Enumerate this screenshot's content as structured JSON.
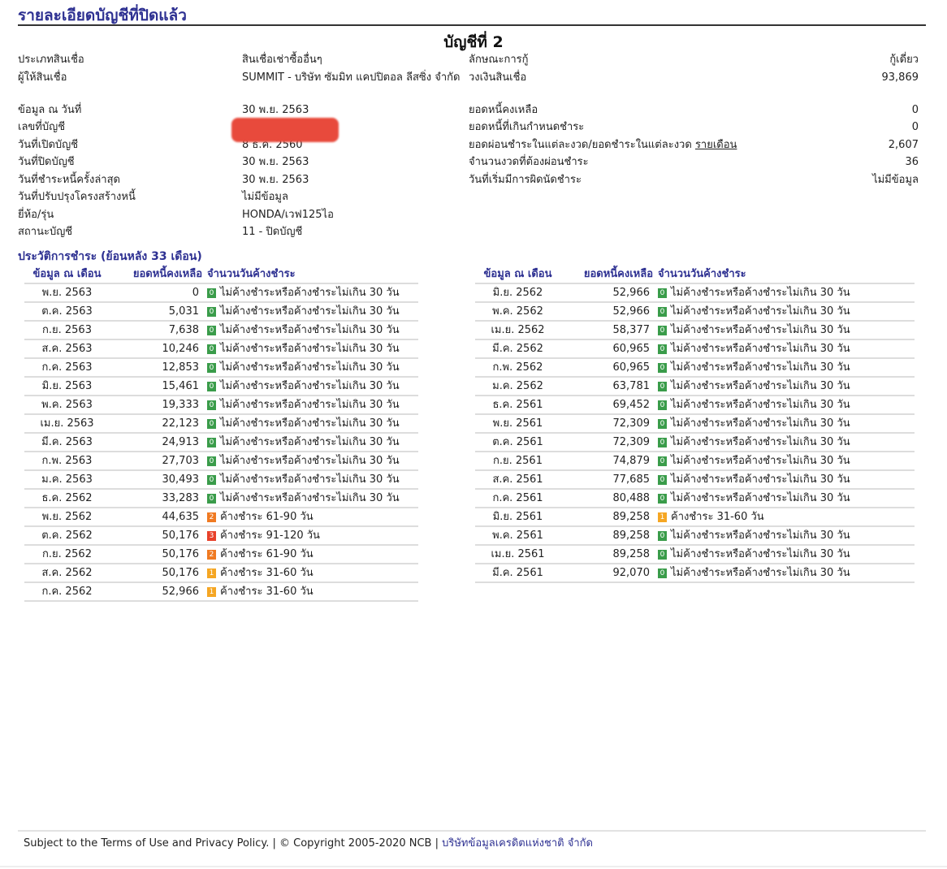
{
  "page_title": "รายละเอียดบัญชีที่ปิดแล้ว",
  "account_title": "บัญชีที่ 2",
  "details_left": [
    {
      "label": "ประเภทสินเชื่อ",
      "value": "สินเชื่อเช่าซื้ออื่นๆ"
    },
    {
      "label": "ผู้ให้สินเชื่อ",
      "value": "SUMMIT - บริษัท ซัมมิท แคปปิตอล ลีสซิ่ง จำกัด"
    },
    {
      "label": "ข้อมูล ณ วันที่",
      "value": "30 พ.ย. 2563"
    },
    {
      "label": "เลขที่บัญชี",
      "value": ""
    },
    {
      "label": "วันที่เปิดบัญชี",
      "value": "8 ธ.ค. 2560"
    },
    {
      "label": "วันที่ปิดบัญชี",
      "value": "30 พ.ย. 2563"
    },
    {
      "label": "วันที่ชำระหนี้ครั้งล่าสุด",
      "value": "30 พ.ย. 2563"
    },
    {
      "label": "วันที่ปรับปรุงโครงสร้างหนี้",
      "value": "ไม่มีข้อมูล"
    },
    {
      "label": "ยี่ห้อ/รุ่น",
      "value": "HONDA/เวฟ125ไอ"
    },
    {
      "label": "สถานะบัญชี",
      "value": "11 - ปิดบัญชี"
    }
  ],
  "details_right": [
    {
      "label": "ลักษณะการกู้",
      "value": "กู้เดี่ยว"
    },
    {
      "label": "วงเงินสินเชื่อ",
      "value": "93,869"
    },
    {
      "label": "ยอดหนี้คงเหลือ",
      "value": "0"
    },
    {
      "label": "ยอดหนี้ที่เกินกำหนดชำระ",
      "value": "0"
    },
    {
      "label": "ยอดผ่อนชำระในแต่ละงวด/ยอดชำระในแต่ละงวด",
      "link": "รายเดือน",
      "value": "2,607"
    },
    {
      "label": "จำนวนงวดที่ต้องผ่อนชำระ",
      "value": "36"
    },
    {
      "label": "วันที่เริ่มมีการผิดนัดชำระ",
      "value": "ไม่มีข้อมูล"
    }
  ],
  "history": {
    "title": "ประวัติการชำระ (ย้อนหลัง 33 เดือน)",
    "headers": {
      "month": "ข้อมูล ณ เดือน",
      "balance": "ยอดหนี้คงเหลือ",
      "days": "จำนวนวันค้างชำระ"
    },
    "badge_colors": {
      "0": "#3a9c4a",
      "1": "#f5a623",
      "2": "#f07a22",
      "3": "#e8412a"
    },
    "left": [
      {
        "month": "พ.ย. 2563",
        "balance": "0",
        "code": "0",
        "status": "ไม่ค้างชำระหรือค้างชำระไม่เกิน 30 วัน"
      },
      {
        "month": "ต.ค. 2563",
        "balance": "5,031",
        "code": "0",
        "status": "ไม่ค้างชำระหรือค้างชำระไม่เกิน 30 วัน"
      },
      {
        "month": "ก.ย. 2563",
        "balance": "7,638",
        "code": "0",
        "status": "ไม่ค้างชำระหรือค้างชำระไม่เกิน 30 วัน"
      },
      {
        "month": "ส.ค. 2563",
        "balance": "10,246",
        "code": "0",
        "status": "ไม่ค้างชำระหรือค้างชำระไม่เกิน 30 วัน"
      },
      {
        "month": "ก.ค. 2563",
        "balance": "12,853",
        "code": "0",
        "status": "ไม่ค้างชำระหรือค้างชำระไม่เกิน 30 วัน"
      },
      {
        "month": "มิ.ย. 2563",
        "balance": "15,461",
        "code": "0",
        "status": "ไม่ค้างชำระหรือค้างชำระไม่เกิน 30 วัน"
      },
      {
        "month": "พ.ค. 2563",
        "balance": "19,333",
        "code": "0",
        "status": "ไม่ค้างชำระหรือค้างชำระไม่เกิน 30 วัน"
      },
      {
        "month": "เม.ย. 2563",
        "balance": "22,123",
        "code": "0",
        "status": "ไม่ค้างชำระหรือค้างชำระไม่เกิน 30 วัน"
      },
      {
        "month": "มี.ค. 2563",
        "balance": "24,913",
        "code": "0",
        "status": "ไม่ค้างชำระหรือค้างชำระไม่เกิน 30 วัน"
      },
      {
        "month": "ก.พ. 2563",
        "balance": "27,703",
        "code": "0",
        "status": "ไม่ค้างชำระหรือค้างชำระไม่เกิน 30 วัน"
      },
      {
        "month": "ม.ค. 2563",
        "balance": "30,493",
        "code": "0",
        "status": "ไม่ค้างชำระหรือค้างชำระไม่เกิน 30 วัน"
      },
      {
        "month": "ธ.ค. 2562",
        "balance": "33,283",
        "code": "0",
        "status": "ไม่ค้างชำระหรือค้างชำระไม่เกิน 30 วัน"
      },
      {
        "month": "พ.ย. 2562",
        "balance": "44,635",
        "code": "2",
        "status": "ค้างชำระ 61-90 วัน"
      },
      {
        "month": "ต.ค. 2562",
        "balance": "50,176",
        "code": "3",
        "status": "ค้างชำระ 91-120 วัน"
      },
      {
        "month": "ก.ย. 2562",
        "balance": "50,176",
        "code": "2",
        "status": "ค้างชำระ 61-90 วัน"
      },
      {
        "month": "ส.ค. 2562",
        "balance": "50,176",
        "code": "1",
        "status": "ค้างชำระ 31-60 วัน"
      },
      {
        "month": "ก.ค. 2562",
        "balance": "52,966",
        "code": "1",
        "status": "ค้างชำระ 31-60 วัน"
      }
    ],
    "right": [
      {
        "month": "มิ.ย. 2562",
        "balance": "52,966",
        "code": "0",
        "status": "ไม่ค้างชำระหรือค้างชำระไม่เกิน 30 วัน"
      },
      {
        "month": "พ.ค. 2562",
        "balance": "52,966",
        "code": "0",
        "status": "ไม่ค้างชำระหรือค้างชำระไม่เกิน 30 วัน"
      },
      {
        "month": "เม.ย. 2562",
        "balance": "58,377",
        "code": "0",
        "status": "ไม่ค้างชำระหรือค้างชำระไม่เกิน 30 วัน"
      },
      {
        "month": "มี.ค. 2562",
        "balance": "60,965",
        "code": "0",
        "status": "ไม่ค้างชำระหรือค้างชำระไม่เกิน 30 วัน"
      },
      {
        "month": "ก.พ. 2562",
        "balance": "60,965",
        "code": "0",
        "status": "ไม่ค้างชำระหรือค้างชำระไม่เกิน 30 วัน"
      },
      {
        "month": "ม.ค. 2562",
        "balance": "63,781",
        "code": "0",
        "status": "ไม่ค้างชำระหรือค้างชำระไม่เกิน 30 วัน"
      },
      {
        "month": "ธ.ค. 2561",
        "balance": "69,452",
        "code": "0",
        "status": "ไม่ค้างชำระหรือค้างชำระไม่เกิน 30 วัน"
      },
      {
        "month": "พ.ย. 2561",
        "balance": "72,309",
        "code": "0",
        "status": "ไม่ค้างชำระหรือค้างชำระไม่เกิน 30 วัน"
      },
      {
        "month": "ต.ค. 2561",
        "balance": "72,309",
        "code": "0",
        "status": "ไม่ค้างชำระหรือค้างชำระไม่เกิน 30 วัน"
      },
      {
        "month": "ก.ย. 2561",
        "balance": "74,879",
        "code": "0",
        "status": "ไม่ค้างชำระหรือค้างชำระไม่เกิน 30 วัน"
      },
      {
        "month": "ส.ค. 2561",
        "balance": "77,685",
        "code": "0",
        "status": "ไม่ค้างชำระหรือค้างชำระไม่เกิน 30 วัน"
      },
      {
        "month": "ก.ค. 2561",
        "balance": "80,488",
        "code": "0",
        "status": "ไม่ค้างชำระหรือค้างชำระไม่เกิน 30 วัน"
      },
      {
        "month": "มิ.ย. 2561",
        "balance": "89,258",
        "code": "1",
        "status": "ค้างชำระ 31-60 วัน"
      },
      {
        "month": "พ.ค. 2561",
        "balance": "89,258",
        "code": "0",
        "status": "ไม่ค้างชำระหรือค้างชำระไม่เกิน 30 วัน"
      },
      {
        "month": "เม.ย. 2561",
        "balance": "89,258",
        "code": "0",
        "status": "ไม่ค้างชำระหรือค้างชำระไม่เกิน 30 วัน"
      },
      {
        "month": "มี.ค. 2561",
        "balance": "92,070",
        "code": "0",
        "status": "ไม่ค้างชำระหรือค้างชำระไม่เกิน 30 วัน"
      }
    ]
  },
  "footer": {
    "text": "Subject to the Terms of Use and Privacy Policy. | © Copyright 2005-2020 NCB | ",
    "link": "บริษัทข้อมูลเครดิตแห่งชาติ จำกัด"
  }
}
